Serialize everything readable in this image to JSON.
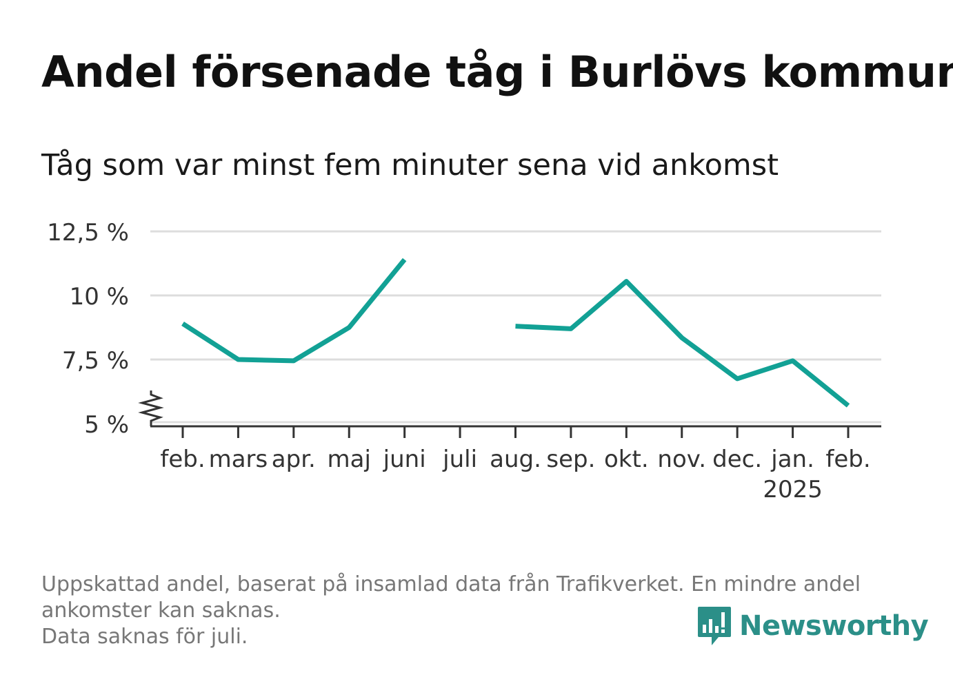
{
  "title": "Andel försenade tåg i Burlövs kommun",
  "subtitle": "Tåg som var minst fem minuter sena vid ankomst",
  "footnote": [
    "Uppskattad andel, baserat på insamlad data från Trafikverket. En mindre andel",
    "ankomster kan saknas.",
    "Data saknas för juli."
  ],
  "logo": {
    "name": "Newsworthy",
    "icon": "newsworthy-chart-icon",
    "color": "#2b8f88"
  },
  "colors": {
    "line": "#12a195",
    "grid": "#dddddd",
    "axis": "#333333"
  },
  "chart_data": {
    "type": "line",
    "title": "Andel försenade tåg i Burlövs kommun",
    "subtitle": "Tåg som var minst fem minuter sena vid ankomst",
    "categories": [
      "feb.",
      "mars",
      "apr.",
      "maj",
      "juni",
      "juli",
      "aug.",
      "sep.",
      "okt.",
      "nov.",
      "dec.",
      "jan.",
      "feb."
    ],
    "year_label": {
      "text": "2025",
      "under_category_index": 11
    },
    "series": [
      {
        "values": [
          8.9,
          7.5,
          7.45,
          8.75,
          11.4,
          null,
          8.8,
          8.7,
          10.55,
          8.35,
          6.75,
          7.45,
          5.7
        ]
      }
    ],
    "y_ticks": [
      {
        "value": 5,
        "label": "5 %"
      },
      {
        "value": 7.5,
        "label": "7,5 %"
      },
      {
        "value": 10,
        "label": "10 %"
      },
      {
        "value": 12.5,
        "label": "12,5 %"
      }
    ],
    "ylim": [
      5,
      12.5
    ],
    "y_axis_break": true,
    "grid": true,
    "xlabel": "",
    "ylabel": ""
  }
}
